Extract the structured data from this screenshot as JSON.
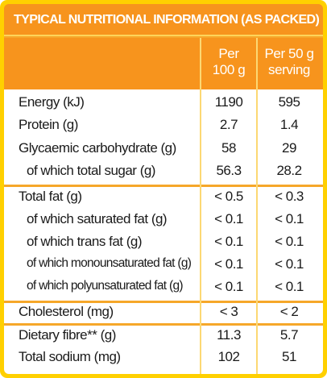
{
  "title": "TYPICAL NUTRITIONAL INFORMATION (AS PACKED)",
  "columns": [
    {
      "line1": "Per",
      "line2": "100 g"
    },
    {
      "line1": "Per 50 g",
      "line2": "serving"
    }
  ],
  "colors": {
    "border": "#ffd000",
    "header_background": "#f7941d",
    "divider": "#f6a72a"
  },
  "rows": [
    {
      "label": "Energy (kJ)",
      "per100": "1190",
      "perServing": "595"
    },
    {
      "label": "Protein (g)",
      "per100": "2.7",
      "perServing": "1.4"
    },
    {
      "label": "Glycaemic carbohydrate (g)",
      "per100": "58",
      "perServing": "29"
    },
    {
      "label": "of which total sugar (g)",
      "per100": "56.3",
      "perServing": "28.2"
    },
    {
      "label": "Total fat (g)",
      "per100": "< 0.5",
      "perServing": "< 0.3"
    },
    {
      "label": "of which saturated fat (g)",
      "per100": "< 0.1",
      "perServing": "< 0.1"
    },
    {
      "label": "of which trans fat (g)",
      "per100": "< 0.1",
      "perServing": "< 0.1"
    },
    {
      "label": "of which monounsaturated fat (g)",
      "per100": "< 0.1",
      "perServing": "< 0.1"
    },
    {
      "label": "of which polyunsaturated fat (g)",
      "per100": "< 0.1",
      "perServing": "< 0.1"
    },
    {
      "label": "Cholesterol (mg)",
      "per100": "< 3",
      "perServing": "< 2"
    },
    {
      "label": "Dietary fibre** (g)",
      "per100": "11.3",
      "perServing": "5.7"
    },
    {
      "label": "Total sodium (mg)",
      "per100": "102",
      "perServing": "51"
    }
  ]
}
